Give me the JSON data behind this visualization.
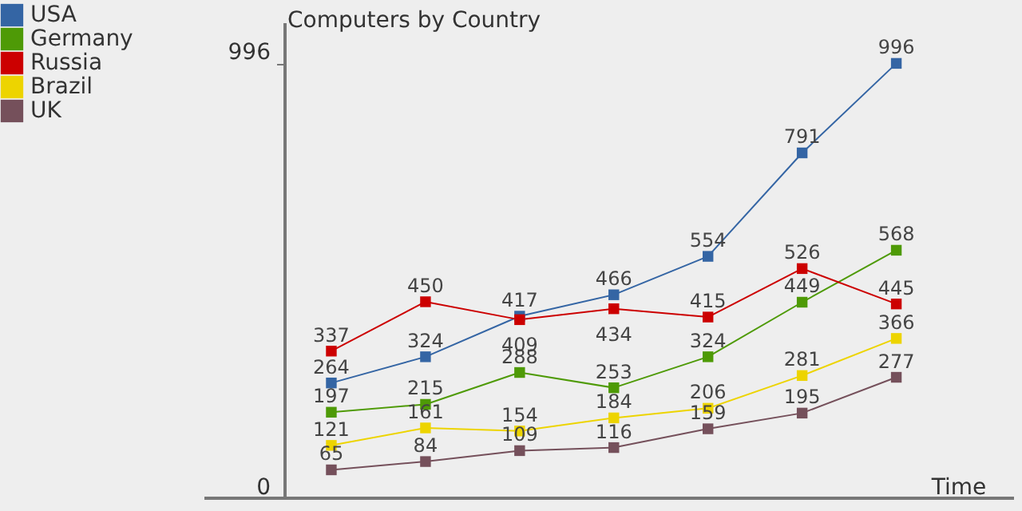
{
  "chart_data": {
    "type": "line",
    "title": "Computers by Country",
    "xlabel": "Time",
    "categories": [
      null,
      null,
      null,
      null,
      null,
      null,
      null
    ],
    "series": [
      {
        "name": "USA",
        "color": "#3465a4",
        "values": [
          264,
          324,
          417,
          466,
          554,
          791,
          996
        ]
      },
      {
        "name": "Germany",
        "color": "#4e9a06",
        "values": [
          197,
          215,
          288,
          253,
          324,
          449,
          568
        ]
      },
      {
        "name": "Russia",
        "color": "#cc0000",
        "values": [
          337,
          450,
          409,
          434,
          415,
          526,
          445
        ]
      },
      {
        "name": "Brazil",
        "color": "#edd400",
        "values": [
          121,
          161,
          154,
          184,
          206,
          281,
          366
        ]
      },
      {
        "name": "UK",
        "color": "#75505b",
        "values": [
          65,
          84,
          109,
          116,
          159,
          195,
          277
        ]
      }
    ],
    "ylim": [
      0,
      1090
    ],
    "yticks": [
      0,
      996
    ],
    "tick_labels": "y",
    "data_labels": true,
    "marker": "square",
    "grid": false,
    "legend": "top left",
    "line_style": "solid"
  }
}
